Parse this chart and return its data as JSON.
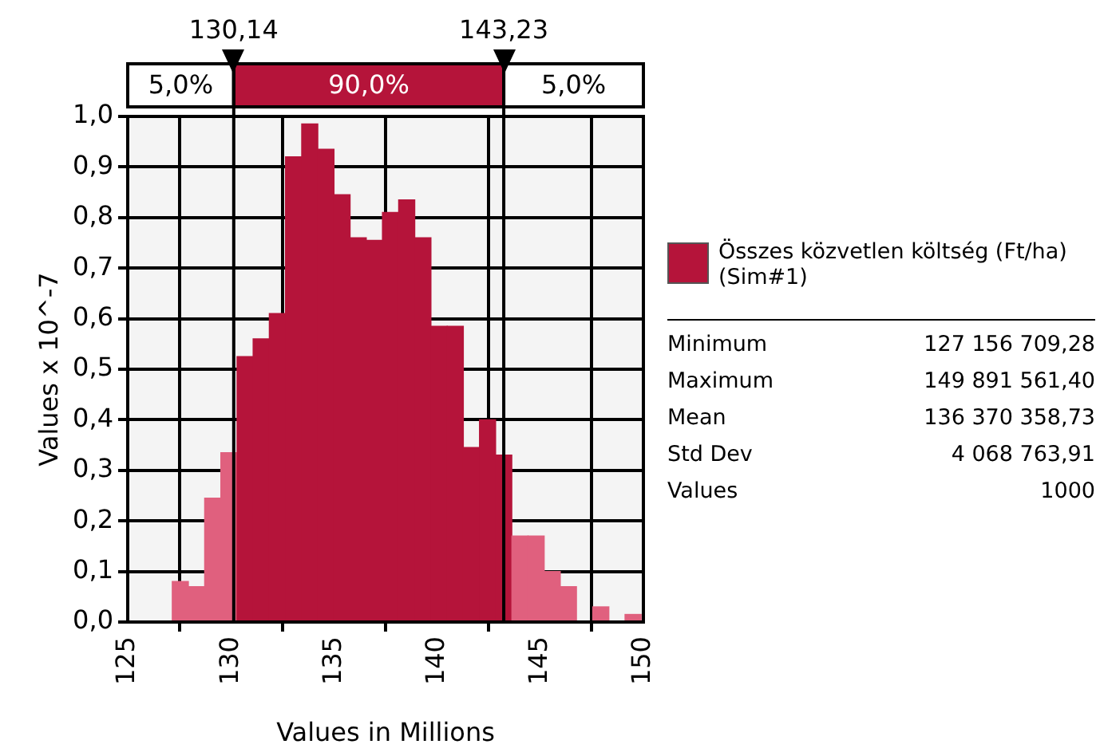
{
  "chart_data": {
    "type": "histogram",
    "xlabel": "Values in Millions",
    "ylabel": "Values x 10^-7",
    "bins": [
      127.16,
      127.94,
      128.73,
      129.51,
      130.3,
      131.08,
      131.86,
      132.65,
      133.43,
      134.22,
      135,
      135.78,
      136.57,
      137.35,
      138.13,
      138.92,
      139.7,
      140.49,
      141.27,
      142.05,
      142.84,
      143.62,
      144.41,
      145.19,
      145.97,
      146.76,
      147.54,
      148.33,
      149.11,
      149.89
    ],
    "series": [
      {
        "name": "Összes közvetlen költség (Ft/ha) (Sim#1)",
        "color": "#b5143a",
        "values": [
          0.08,
          0.07,
          0.245,
          0.335,
          0.525,
          0.56,
          0.61,
          0.92,
          0.985,
          0.935,
          0.845,
          0.76,
          0.755,
          0.81,
          0.835,
          0.76,
          0.585,
          0.585,
          0.345,
          0.4,
          0.33,
          0.17,
          0.17,
          0.1,
          0.07,
          0,
          0.03,
          0,
          0.015
        ],
        "colors": [
          "#e0607e",
          "#e0607e",
          "#e0607e",
          "#e0607e",
          "#b5143a",
          "#b5143a",
          "#b5143a",
          "#b5143a",
          "#b5143a",
          "#b5143a",
          "#b5143a",
          "#b5143a",
          "#b5143a",
          "#b5143a",
          "#b5143a",
          "#b5143a",
          "#b5143a",
          "#b5143a",
          "#b5143a",
          "#b5143a",
          "#b5143a",
          "#e0607e",
          "#e0607e",
          "#e0607e",
          "#e0607e",
          "#e0607e",
          "#e0607e",
          "#e0607e",
          "#e0607e"
        ]
      }
    ],
    "xlim": [
      125,
      150
    ],
    "xticks": [
      125,
      130,
      135,
      140,
      145,
      150
    ],
    "ylim": [
      0,
      1
    ],
    "yticks": [
      {
        "value": 0,
        "label": "0,0"
      },
      {
        "value": 0.1,
        "label": "0,1"
      },
      {
        "value": 0.2,
        "label": "0,2"
      },
      {
        "value": 0.3,
        "label": "0,3"
      },
      {
        "value": 0.4,
        "label": "0,4"
      },
      {
        "value": 0.5,
        "label": "0,5"
      },
      {
        "value": 0.6,
        "label": "0,6"
      },
      {
        "value": 0.7,
        "label": "0,7"
      },
      {
        "value": 0.8,
        "label": "0,8"
      },
      {
        "value": 0.9,
        "label": "0,9"
      },
      {
        "value": 1,
        "label": "1,0"
      }
    ],
    "ref_lines": [
      {
        "axis": "x",
        "value": 130.14,
        "label": "130,14"
      },
      {
        "axis": "x",
        "value": 143.23,
        "label": "143,23"
      }
    ],
    "grid": true,
    "legend": "right",
    "annotations": [
      "5,0%",
      "90,0%",
      "5,0%",
      "Minimum",
      "127 156 709,28",
      "Maximum",
      "149 891 561,40",
      "Mean",
      "136 370 358,73",
      "Std Dev",
      "4 068 763,91",
      "Values",
      "1000"
    ]
  }
}
